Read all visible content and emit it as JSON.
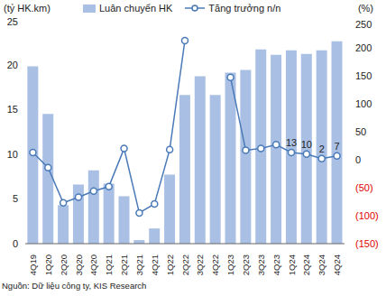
{
  "chart_data": {
    "type": "bar",
    "y_label": "(tỷ HK.km)",
    "y2_label": "(%)",
    "source": "Nguồn: Dữ liệu công ty, KIS Research",
    "legend": "top",
    "categories": [
      "4Q19",
      "1Q20",
      "2Q20",
      "3Q20",
      "4Q20",
      "1Q21",
      "2Q21",
      "3Q21",
      "4Q21",
      "1Q22",
      "2Q22",
      "3Q22",
      "4Q22",
      "1Q23",
      "2Q23",
      "3Q23",
      "4Q23",
      "1Q24",
      "2Q24",
      "3Q24",
      "4Q24"
    ],
    "ylim": [
      0,
      25
    ],
    "yticks": [
      0,
      5,
      10,
      15,
      20,
      25
    ],
    "y2lim": [
      -150,
      250
    ],
    "y2ticks": [
      {
        "value": -150,
        "label": "(150)"
      },
      {
        "value": -100,
        "label": "(100)"
      },
      {
        "value": -50,
        "label": "(50)"
      },
      0,
      50,
      100,
      150,
      200,
      250
    ],
    "series": [
      {
        "name": "Luân chuyển HK",
        "type": "bar",
        "color": "#a9c0e4",
        "values": [
          19.8,
          14.5,
          4.3,
          6.6,
          8.2,
          6.7,
          5.3,
          0.4,
          1.7,
          7.7,
          16.6,
          18.7,
          16.6,
          19.1,
          19.4,
          21.7,
          21.1,
          21.6,
          21.2,
          21.6,
          22.6
        ]
      },
      {
        "name": "Tăng trưởng n/n",
        "type": "line",
        "axis": "y2",
        "color": "#4a7ab8",
        "marker": "circle",
        "data_labels": true,
        "values": [
          13,
          -14,
          -77,
          -67,
          -56,
          -48,
          20,
          -95,
          -79,
          18,
          213,
          null,
          null,
          147,
          17,
          20,
          27,
          13,
          10,
          2,
          7
        ],
        "value_labels": [
          null,
          null,
          null,
          null,
          null,
          null,
          null,
          null,
          null,
          null,
          null,
          null,
          null,
          null,
          null,
          null,
          null,
          "13",
          "10",
          "2",
          "7"
        ]
      }
    ]
  }
}
